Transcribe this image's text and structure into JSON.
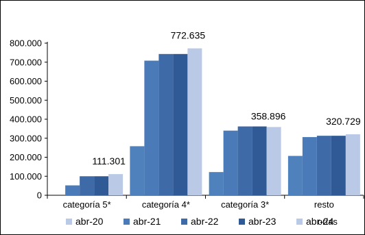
{
  "chart_data": {
    "type": "bar",
    "title": "",
    "xlabel": "",
    "ylabel": "",
    "ylim": [
      0,
      800000
    ],
    "yticks": [
      0,
      100000,
      200000,
      300000,
      400000,
      500000,
      600000,
      700000,
      800000
    ],
    "ytick_labels": [
      "0",
      "100.000",
      "200.000",
      "300.000",
      "400.000",
      "500.000",
      "600.000",
      "700.000",
      "800.000"
    ],
    "categories": [
      "categoría 5*",
      "categoría 4*",
      "categoría 3*",
      "resto categorías"
    ],
    "category_labels_visible": [
      "categoría 5*",
      "categoría 4*",
      "categoría 3*",
      "resto",
      "orías"
    ],
    "series": [
      {
        "name": "abr-20",
        "color": "#4f81bd",
        "values": [
          0,
          258000,
          122000,
          207000
        ]
      },
      {
        "name": "abr-21",
        "color": "#4a7ab8",
        "values": [
          52000,
          708000,
          340000,
          306000
        ]
      },
      {
        "name": "abr-22",
        "color": "#3e6aa8",
        "values": [
          100000,
          743000,
          362000,
          313000
        ]
      },
      {
        "name": "abr-23",
        "color": "#2f5a96",
        "values": [
          100000,
          743000,
          362000,
          313000
        ]
      },
      {
        "name": "abr-24",
        "color": "#b9c9e6",
        "values": [
          111301,
          772635,
          358896,
          320729
        ]
      }
    ],
    "data_labels": [
      {
        "category_index": 0,
        "series_index": 4,
        "text": "111.301"
      },
      {
        "category_index": 1,
        "series_index": 4,
        "text": "772.635"
      },
      {
        "category_index": 2,
        "series_index": 4,
        "text": "358.896"
      },
      {
        "category_index": 3,
        "series_index": 4,
        "text": "320.729"
      }
    ],
    "legend_order": [
      4,
      1,
      2,
      3,
      4
    ],
    "legend_labels": [
      "abr-20",
      "abr-21",
      "abr-22",
      "abr-23",
      "abr-24"
    ],
    "legend_position": "bottom",
    "grid": false
  }
}
